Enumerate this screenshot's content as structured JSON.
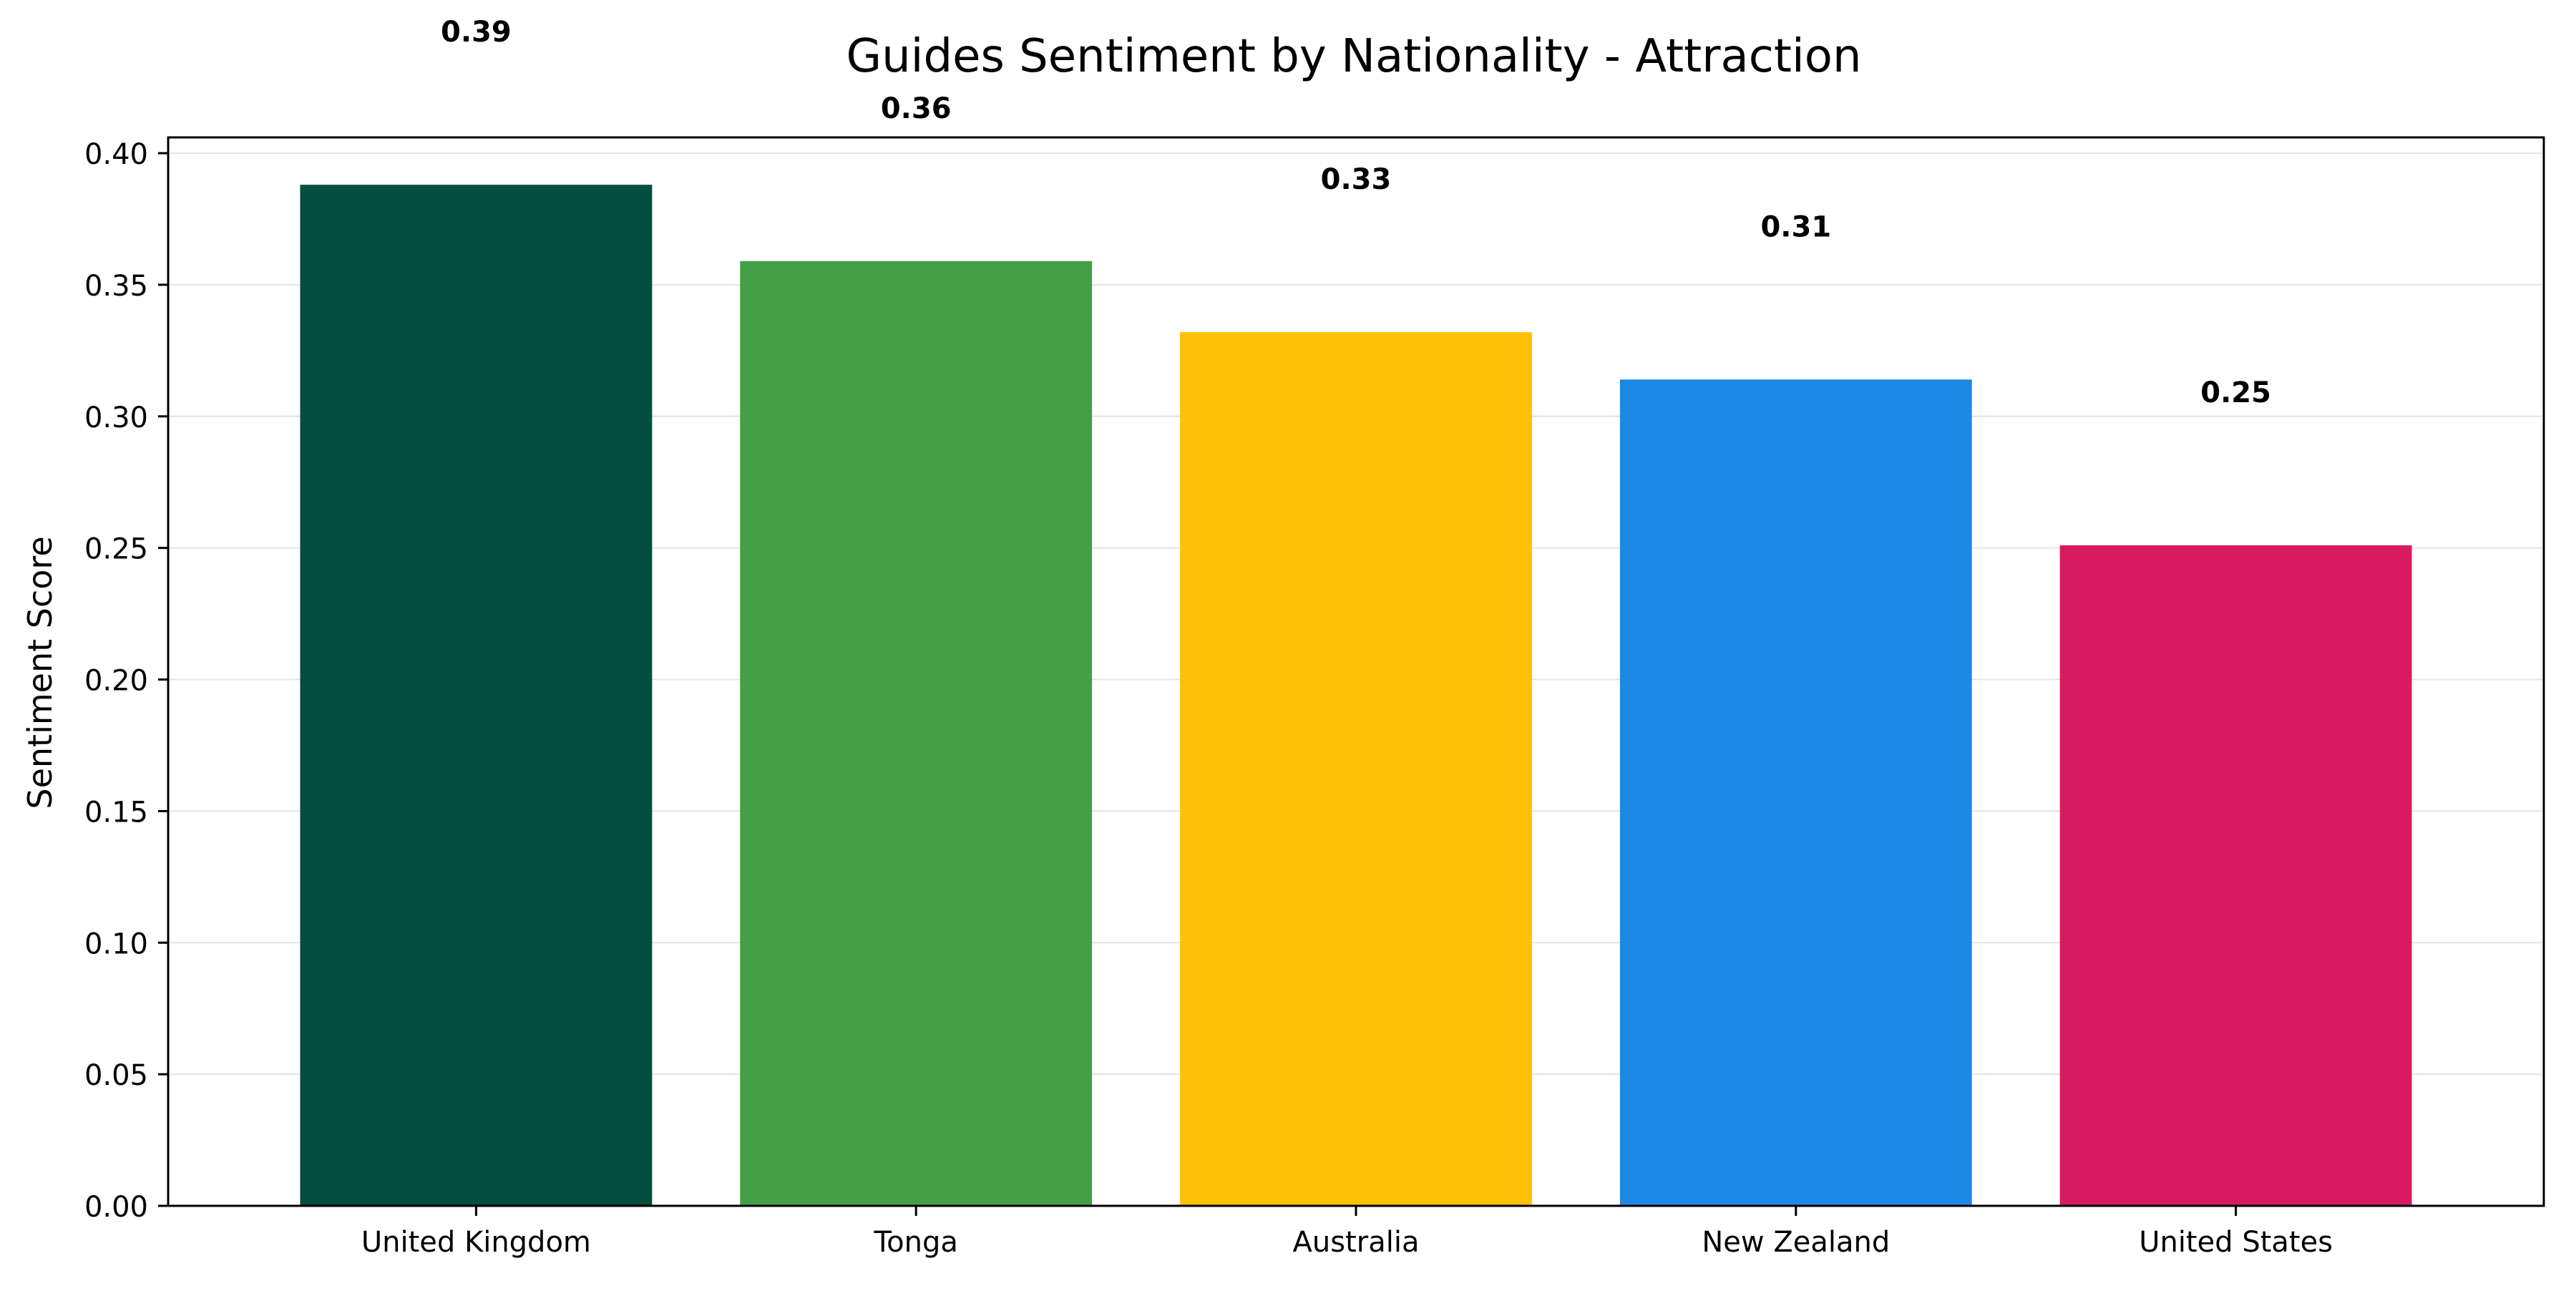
{
  "chart_data": {
    "type": "bar",
    "title": "Guides Sentiment by Nationality - Attraction",
    "xlabel": "",
    "ylabel": "Sentiment Score",
    "categories": [
      "United Kingdom",
      "Tonga",
      "Australia",
      "New Zealand",
      "United States"
    ],
    "values": [
      0.388,
      0.359,
      0.332,
      0.314,
      0.251
    ],
    "value_labels": [
      "0.39",
      "0.36",
      "0.33",
      "0.31",
      "0.25"
    ],
    "colors": [
      "#044D3F",
      "#43A047",
      "#FFC107",
      "#1E88E5",
      "#D81B60"
    ],
    "ylim": [
      0,
      0.406
    ],
    "yticks": [
      0.0,
      0.05,
      0.1,
      0.15,
      0.2,
      0.25,
      0.3,
      0.35,
      0.4
    ],
    "ytick_labels": [
      "0.00",
      "0.05",
      "0.10",
      "0.15",
      "0.20",
      "0.25",
      "0.30",
      "0.35",
      "0.40"
    ],
    "grid": "horizontal",
    "legend": "none"
  }
}
